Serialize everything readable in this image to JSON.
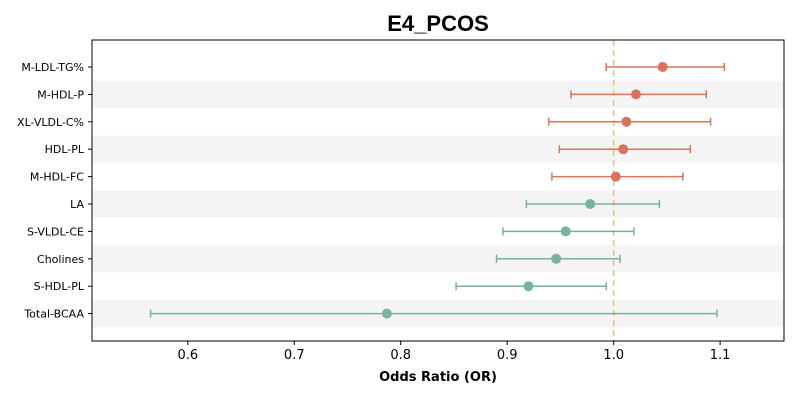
{
  "chart_data": {
    "type": "forest",
    "title": "E4_PCOS",
    "xlabel": "Odds Ratio (OR)",
    "ylabel": "",
    "xlim": [
      0.51,
      1.16
    ],
    "xticks": [
      0.6,
      0.7,
      0.8,
      0.9,
      1.0,
      1.1
    ],
    "xtick_labels": [
      "0.6",
      "0.7",
      "0.8",
      "0.9",
      "1.0",
      "1.1"
    ],
    "reference_line": 1.0,
    "alternating_row_shading": true,
    "grid": false,
    "colors": {
      "positive": "#d9745a",
      "negative": "#78b29a",
      "reference_line": "#f0c27b",
      "row_shade": "#f4f4f4"
    },
    "rows": [
      {
        "label": "M-LDL-TG%",
        "or": 1.046,
        "lower": 0.993,
        "upper": 1.104,
        "group": "positive"
      },
      {
        "label": "M-HDL-P",
        "or": 1.021,
        "lower": 0.96,
        "upper": 1.087,
        "group": "positive"
      },
      {
        "label": "XL-VLDL-C%",
        "or": 1.012,
        "lower": 0.939,
        "upper": 1.091,
        "group": "positive"
      },
      {
        "label": "HDL-PL",
        "or": 1.009,
        "lower": 0.949,
        "upper": 1.072,
        "group": "positive"
      },
      {
        "label": "M-HDL-FC",
        "or": 1.002,
        "lower": 0.942,
        "upper": 1.065,
        "group": "positive"
      },
      {
        "label": "LA",
        "or": 0.978,
        "lower": 0.918,
        "upper": 1.043,
        "group": "negative"
      },
      {
        "label": "S-VLDL-CE",
        "or": 0.955,
        "lower": 0.896,
        "upper": 1.019,
        "group": "negative"
      },
      {
        "label": "Cholines",
        "or": 0.946,
        "lower": 0.89,
        "upper": 1.006,
        "group": "negative"
      },
      {
        "label": "S-HDL-PL",
        "or": 0.92,
        "lower": 0.852,
        "upper": 0.993,
        "group": "negative"
      },
      {
        "label": "Total-BCAA",
        "or": 0.787,
        "lower": 0.565,
        "upper": 1.097,
        "group": "negative"
      }
    ]
  }
}
